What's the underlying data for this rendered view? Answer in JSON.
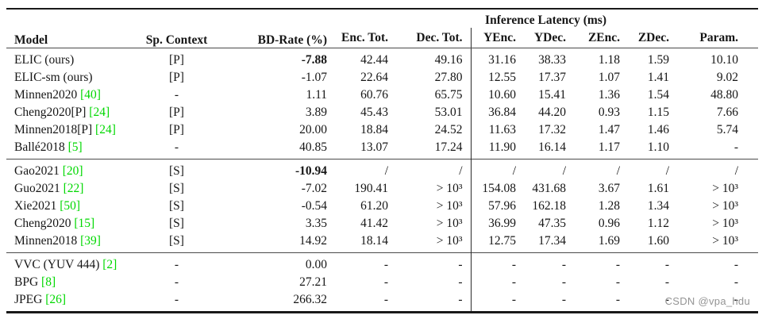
{
  "watermark": "CSDN @vpa_hdu",
  "colors": {
    "citation_green": "#00d800",
    "text_black": "#161616",
    "watermark_gray": "#949494"
  },
  "table": {
    "header": {
      "model": "Model",
      "sp_context": "Sp. Context",
      "bd_rate": "BD-Rate (%)",
      "latency_group": "Inference Latency (ms)",
      "latency_cols": [
        "Enc. Tot.",
        "Dec. Tot.",
        "YEnc.",
        "YDec.",
        "ZEnc.",
        "ZDec.",
        "Param."
      ]
    },
    "groups": [
      {
        "name": "parallel-context-models",
        "rows": [
          {
            "model": "ELIC (ours)",
            "cite": "",
            "sp": "[P]",
            "bd": "-7.88",
            "bold": true,
            "vals": [
              "42.44",
              "49.16",
              "31.16",
              "38.33",
              "1.18",
              "1.59",
              "10.10"
            ]
          },
          {
            "model": "ELIC-sm (ours)",
            "cite": "",
            "sp": "[P]",
            "bd": "-1.07",
            "bold": false,
            "vals": [
              "22.64",
              "27.80",
              "12.55",
              "17.37",
              "1.07",
              "1.41",
              "9.02"
            ]
          },
          {
            "model": "Minnen2020",
            "cite": "[40]",
            "sp": "-",
            "bd": "1.11",
            "bold": false,
            "vals": [
              "60.76",
              "65.75",
              "10.60",
              "15.41",
              "1.36",
              "1.54",
              "48.80"
            ]
          },
          {
            "model": "Cheng2020[P]",
            "cite": "[24]",
            "sp": "[P]",
            "bd": "3.89",
            "bold": false,
            "vals": [
              "45.43",
              "53.01",
              "36.84",
              "44.20",
              "0.93",
              "1.15",
              "7.66"
            ]
          },
          {
            "model": "Minnen2018[P]",
            "cite": "[24]",
            "sp": "[P]",
            "bd": "20.00",
            "bold": false,
            "vals": [
              "18.84",
              "24.52",
              "11.63",
              "17.32",
              "1.47",
              "1.46",
              "5.74"
            ]
          },
          {
            "model": "Ballé2018",
            "cite": "[5]",
            "sp": "-",
            "bd": "40.85",
            "bold": false,
            "vals": [
              "13.07",
              "17.24",
              "11.90",
              "16.14",
              "1.17",
              "1.10",
              "-"
            ]
          }
        ]
      },
      {
        "name": "serial-context-models",
        "rows": [
          {
            "model": "Gao2021",
            "cite": "[20]",
            "sp": "[S]",
            "bd": "-10.94",
            "bold": true,
            "vals": [
              "/",
              "/",
              "/",
              "/",
              "/",
              "/",
              "/"
            ]
          },
          {
            "model": "Guo2021",
            "cite": "[22]",
            "sp": "[S]",
            "bd": "-7.02",
            "bold": false,
            "vals": [
              "190.41",
              "> 10³",
              "154.08",
              "431.68",
              "3.67",
              "1.61",
              "> 10³"
            ]
          },
          {
            "model": "Xie2021",
            "cite": "[50]",
            "sp": "[S]",
            "bd": "-0.54",
            "bold": false,
            "vals": [
              "61.20",
              "> 10³",
              "57.96",
              "162.18",
              "1.28",
              "1.34",
              "> 10³"
            ]
          },
          {
            "model": "Cheng2020",
            "cite": "[15]",
            "sp": "[S]",
            "bd": "3.35",
            "bold": false,
            "vals": [
              "41.42",
              "> 10³",
              "36.99",
              "47.35",
              "0.96",
              "1.12",
              "> 10³"
            ]
          },
          {
            "model": "Minnen2018",
            "cite": "[39]",
            "sp": "[S]",
            "bd": "14.92",
            "bold": false,
            "vals": [
              "18.14",
              "> 10³",
              "12.75",
              "17.34",
              "1.69",
              "1.60",
              "> 10³"
            ]
          }
        ]
      },
      {
        "name": "traditional-codecs",
        "rows": [
          {
            "model": "VVC (YUV 444)",
            "cite": "[2]",
            "sp": "-",
            "bd": "0.00",
            "bold": false,
            "vals": [
              "-",
              "-",
              "-",
              "-",
              "-",
              "-",
              "-"
            ]
          },
          {
            "model": "BPG",
            "cite": "[8]",
            "sp": "-",
            "bd": "27.21",
            "bold": false,
            "vals": [
              "-",
              "-",
              "-",
              "-",
              "-",
              "-",
              "-"
            ]
          },
          {
            "model": "JPEG",
            "cite": "[26]",
            "sp": "-",
            "bd": "266.32",
            "bold": false,
            "vals": [
              "-",
              "-",
              "-",
              "-",
              "-",
              "-",
              "-"
            ]
          }
        ]
      }
    ]
  }
}
